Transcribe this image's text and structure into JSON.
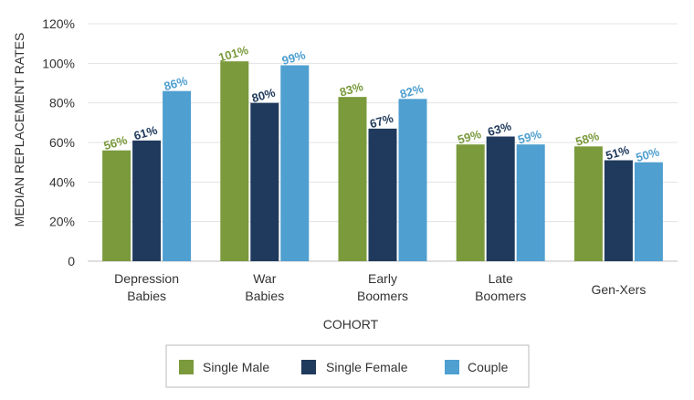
{
  "chart_data": {
    "type": "bar",
    "categories": [
      [
        "Depression",
        "Babies"
      ],
      [
        "War",
        "Babies"
      ],
      [
        "Early",
        "Boomers"
      ],
      [
        "Late",
        "Boomers"
      ],
      [
        "Gen-Xers"
      ]
    ],
    "series": [
      {
        "name": "Single Male",
        "color": "#7a9a3c",
        "values": [
          56,
          101,
          83,
          59,
          58
        ]
      },
      {
        "name": "Single Female",
        "color": "#1f3a5c",
        "values": [
          61,
          80,
          67,
          63,
          51
        ]
      },
      {
        "name": "Couple",
        "color": "#4f9fd0",
        "values": [
          86,
          99,
          82,
          59,
          50
        ]
      }
    ],
    "xlabel": "COHORT",
    "ylabel": "MEDIAN REPLACEMENT RATES",
    "ylim": [
      0,
      120
    ],
    "yticks": [
      "0",
      "20%",
      "40%",
      "60%",
      "80%",
      "100%",
      "120%"
    ],
    "ytick_values": [
      0,
      20,
      40,
      60,
      80,
      100,
      120
    ],
    "data_label_suffix": "%",
    "grid": true,
    "legend_position": "bottom"
  }
}
